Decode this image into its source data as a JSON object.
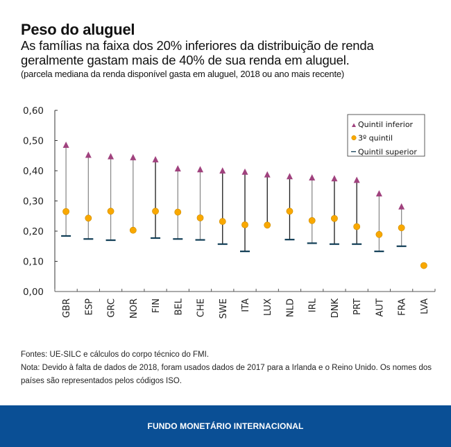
{
  "header": {
    "title": "Peso do aluguel",
    "subtitle": "As famílias na faixa dos 20% inferiores da distribuição de renda geralmente gastam mais de 40% de sua renda em aluguel.",
    "units": "(parcela mediana da renda disponível gasta em aluguel, 2018 ou ano mais recente)"
  },
  "notes": {
    "sources": "Fontes: UE-SILC e cálculos do corpo técnico do FMI.",
    "note": "Nota: Devido à falta de dados de 2018, foram usados dados de 2017 para a Irlanda e o Reino Unido. Os nomes dos países são representados pelos códigos ISO."
  },
  "footer": {
    "org": "FUNDO MONETÁRIO INTERNACIONAL"
  },
  "colors": {
    "bottom_quintile": "#a0427e",
    "third_quintile": "#f9a800",
    "top_quintile": "#0f3c55",
    "range_line_grey": "#8c8c8c",
    "range_line_dark": "#1a1a1a",
    "footer_bg": "#0a4f95"
  },
  "chart_data": {
    "type": "scatter",
    "subtype": "range-dot",
    "title": "Peso do aluguel",
    "xlabel": "",
    "ylabel": "",
    "ylim": [
      0,
      0.6
    ],
    "yticks": [
      0,
      0.1,
      0.2,
      0.3,
      0.4,
      0.5,
      0.6
    ],
    "ytick_labels": [
      "0,00",
      "0,10",
      "0,20",
      "0,30",
      "0,40",
      "0,50",
      "0,60"
    ],
    "grid": false,
    "legend_position": "top-right",
    "categories": [
      "GBR",
      "ESP",
      "GRC",
      "NOR",
      "FIN",
      "BEL",
      "CHE",
      "SWE",
      "ITA",
      "LUX",
      "NLD",
      "IRL",
      "DNK",
      "PRT",
      "AUT",
      "FRA",
      "LVA"
    ],
    "series": [
      {
        "name": "Quintil inferior",
        "marker": "triangle",
        "values": [
          0.485,
          0.452,
          0.447,
          0.444,
          0.437,
          0.407,
          0.404,
          0.4,
          0.396,
          0.387,
          0.381,
          0.377,
          0.374,
          0.369,
          0.324,
          0.281,
          null
        ]
      },
      {
        "name": "3º quintil",
        "marker": "circle",
        "values": [
          0.265,
          0.243,
          0.266,
          0.203,
          0.266,
          0.263,
          0.244,
          0.232,
          0.221,
          0.22,
          0.266,
          0.235,
          0.242,
          0.215,
          0.189,
          0.211,
          0.086
        ]
      },
      {
        "name": "Quintil superior",
        "marker": "dash",
        "values": [
          0.184,
          0.174,
          0.17,
          null,
          0.177,
          0.174,
          0.171,
          0.157,
          0.133,
          null,
          0.172,
          0.16,
          0.157,
          0.157,
          0.133,
          0.15,
          null
        ]
      }
    ],
    "legend_labels": [
      "Quintil inferior",
      "3º quintil",
      "Quintil superior"
    ]
  }
}
